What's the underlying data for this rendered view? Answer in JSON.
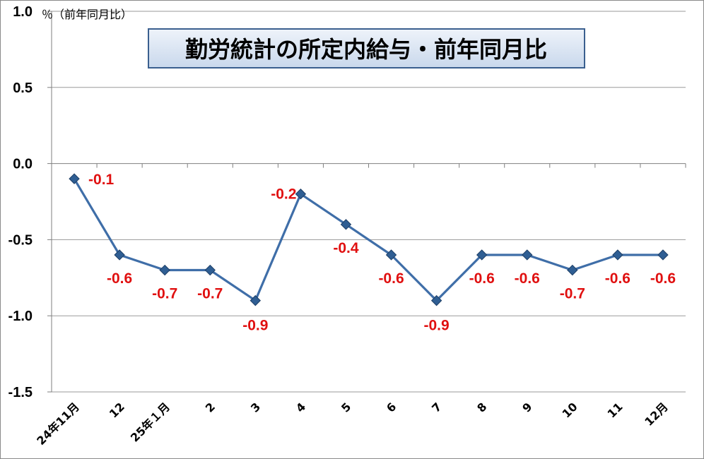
{
  "chart_data": {
    "type": "line",
    "title": "勤労統計の所定内給与・前年同月比",
    "ylabel": "％（前年同月比）",
    "xlabel": "",
    "categories": [
      "24年11月",
      "12",
      "25年１月",
      "2",
      "3",
      "4",
      "5",
      "6",
      "7",
      "8",
      "9",
      "10",
      "11",
      "12月"
    ],
    "series": [
      {
        "values": [
          -0.1,
          -0.6,
          -0.7,
          -0.7,
          -0.9,
          -0.2,
          -0.4,
          -0.6,
          -0.9,
          -0.6,
          -0.6,
          -0.7,
          -0.6,
          -0.6
        ]
      }
    ],
    "data_labels": [
      "-0.1",
      "-0.6",
      "-0.7",
      "-0.7",
      "-0.9",
      "-0.2",
      "-0.4",
      "-0.6",
      "-0.9",
      "-0.6",
      "-0.6",
      "-0.7",
      "-0.6",
      "-0.6"
    ],
    "ylim": [
      -1.5,
      1.0
    ],
    "yticks": [
      1.0,
      0.5,
      0.0,
      -0.5,
      -1.0,
      -1.5
    ],
    "ytick_labels": [
      "1.0",
      "0.5",
      "0.0",
      "-0.5",
      "-1.0",
      "-1.5"
    ],
    "grid": true,
    "colors": {
      "line": "#3f6ea8",
      "marker": "#2f5e93",
      "label": "#e01010",
      "title_bg": "#dbe6f3",
      "title_border": "#3a5f8f"
    }
  }
}
